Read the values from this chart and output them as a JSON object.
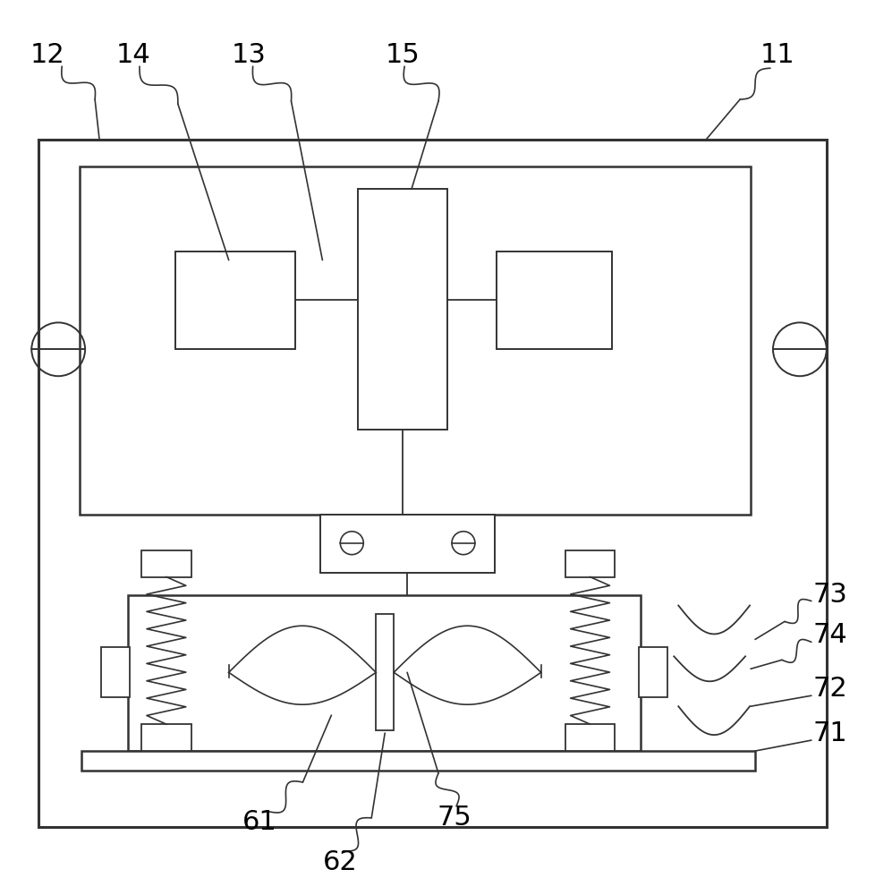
{
  "bg_color": "#ffffff",
  "line_color": "#333333",
  "label_color": "#000000",
  "fig_w": 9.97,
  "fig_h": 10.0
}
